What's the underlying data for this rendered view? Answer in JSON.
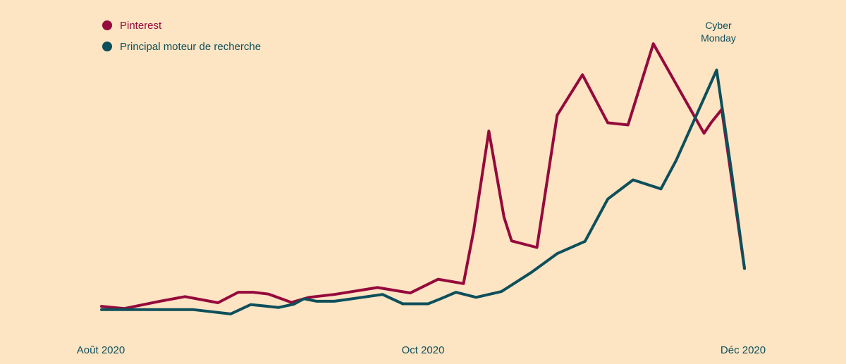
{
  "colors": {
    "background": "#FDE4C3",
    "pinterest": "#950A3C",
    "search": "#0D4F5B",
    "text": "#0D4F5B"
  },
  "chart_data": {
    "type": "line",
    "x_tick_labels": [
      "Août 2020",
      "Oct 2020",
      "Déc 2020"
    ],
    "legend_position": "top-left",
    "grid": false,
    "annotation": {
      "text_line1": "Cyber",
      "text_line2": "Monday",
      "series": "Principal moteur de recherche"
    },
    "series": [
      {
        "name": "Pinterest",
        "color": "#950A3C",
        "points": [
          [
            0.0,
            0.9
          ],
          [
            0.9,
            0.3
          ],
          [
            2.3,
            2.3
          ],
          [
            3.3,
            3.6
          ],
          [
            4.6,
            1.9
          ],
          [
            5.4,
            4.8
          ],
          [
            6.0,
            4.8
          ],
          [
            6.6,
            4.3
          ],
          [
            7.5,
            2.0
          ],
          [
            8.2,
            3.4
          ],
          [
            9.2,
            4.2
          ],
          [
            10.9,
            6.1
          ],
          [
            12.2,
            4.6
          ],
          [
            13.3,
            8.4
          ],
          [
            14.3,
            7.2
          ],
          [
            14.7,
            21.8
          ],
          [
            15.3,
            49.4
          ],
          [
            15.9,
            25.6
          ],
          [
            16.2,
            19.0
          ],
          [
            17.2,
            17.2
          ],
          [
            18.0,
            53.8
          ],
          [
            19.0,
            65.0
          ],
          [
            20.0,
            51.7
          ],
          [
            20.8,
            51.1
          ],
          [
            21.8,
            73.6
          ],
          [
            22.8,
            61.2
          ],
          [
            23.8,
            48.8
          ],
          [
            24.1,
            51.9
          ],
          [
            24.5,
            55.4
          ],
          [
            25.4,
            11.4
          ]
        ]
      },
      {
        "name": "Principal moteur de recherche",
        "color": "#0D4F5B",
        "points": [
          [
            0.0,
            0.0
          ],
          [
            3.6,
            0.0
          ],
          [
            5.1,
            -1.2
          ],
          [
            5.9,
            1.4
          ],
          [
            7.0,
            0.6
          ],
          [
            7.6,
            1.5
          ],
          [
            8.0,
            3.0
          ],
          [
            8.5,
            2.3
          ],
          [
            9.2,
            2.3
          ],
          [
            11.1,
            4.2
          ],
          [
            11.9,
            1.6
          ],
          [
            12.9,
            1.6
          ],
          [
            13.4,
            3.0
          ],
          [
            14.0,
            4.8
          ],
          [
            14.8,
            3.4
          ],
          [
            15.8,
            5.0
          ],
          [
            17.0,
            10.4
          ],
          [
            18.0,
            15.5
          ],
          [
            19.1,
            18.9
          ],
          [
            20.0,
            30.6
          ],
          [
            21.0,
            35.9
          ],
          [
            22.1,
            33.4
          ],
          [
            22.7,
            41.3
          ],
          [
            24.3,
            66.3
          ],
          [
            24.9,
            37.6
          ],
          [
            25.4,
            11.4
          ]
        ]
      }
    ],
    "xlim": [
      0,
      25.4
    ],
    "ylim": [
      -2,
      74
    ]
  }
}
